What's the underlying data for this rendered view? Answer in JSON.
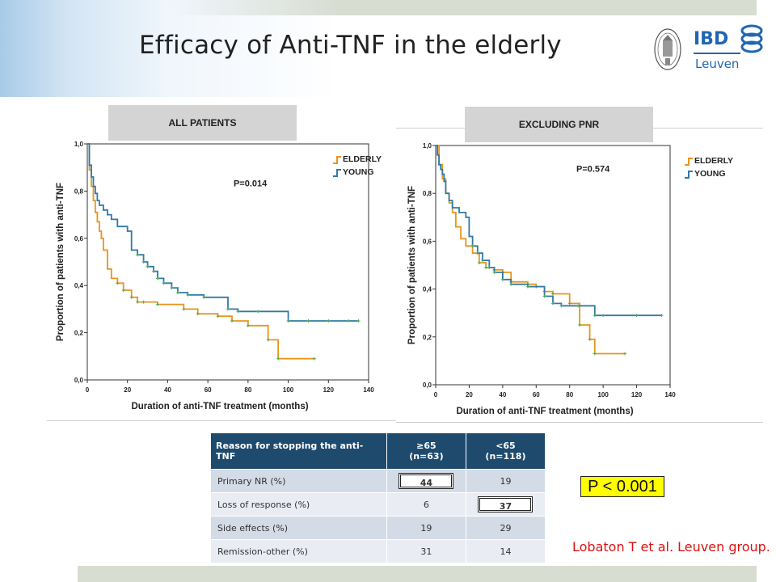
{
  "slide": {
    "title": "Efficacy of Anti-TNF in the elderly",
    "logo": {
      "ibd": "IBD",
      "city": "Leuven"
    },
    "p_value_box": "P < 0.001",
    "reference": "Lobaton T et al. Leuven group."
  },
  "colors": {
    "elderly": "#e8951e",
    "young": "#2f7aa6",
    "censor": "#4caf50",
    "table_header": "#1e4a6e"
  },
  "chart_data": [
    {
      "type": "line",
      "panel_label": "ALL PATIENTS",
      "annotation": "P=0.014",
      "xlabel": "Duration of anti-TNF treatment (months)",
      "ylabel": "Proportion of patients with anti-TNF",
      "xlim": [
        0,
        140
      ],
      "ylim": [
        0,
        1
      ],
      "xticks": [
        "0",
        "20",
        "40",
        "60",
        "80",
        "100",
        "120",
        "140"
      ],
      "yticks": [
        "0,0",
        "0,2",
        "0,4",
        "0,6",
        "0,8",
        "1,0"
      ],
      "legend_position": "top-right",
      "series": [
        {
          "name": "ELDERLY",
          "x": [
            0,
            1,
            2,
            3,
            4,
            5,
            6,
            7,
            8,
            10,
            12,
            15,
            18,
            22,
            25,
            28,
            35,
            48,
            55,
            65,
            72,
            80,
            90,
            95,
            113
          ],
          "y": [
            1.0,
            0.89,
            0.82,
            0.76,
            0.71,
            0.67,
            0.63,
            0.6,
            0.55,
            0.47,
            0.43,
            0.41,
            0.38,
            0.35,
            0.33,
            0.33,
            0.32,
            0.3,
            0.28,
            0.27,
            0.25,
            0.23,
            0.17,
            0.09,
            0.09
          ]
        },
        {
          "name": "YOUNG",
          "x": [
            0,
            1,
            2,
            3,
            4,
            5,
            6,
            8,
            10,
            12,
            15,
            20,
            22,
            25,
            28,
            30,
            33,
            35,
            38,
            42,
            45,
            50,
            58,
            70,
            75,
            85,
            100,
            110,
            120,
            130,
            135
          ],
          "y": [
            1.0,
            0.91,
            0.86,
            0.82,
            0.79,
            0.76,
            0.74,
            0.72,
            0.7,
            0.68,
            0.65,
            0.63,
            0.55,
            0.53,
            0.5,
            0.48,
            0.46,
            0.43,
            0.41,
            0.39,
            0.37,
            0.36,
            0.35,
            0.3,
            0.29,
            0.29,
            0.25,
            0.25,
            0.25,
            0.25,
            0.25
          ]
        }
      ]
    },
    {
      "type": "line",
      "panel_label": "EXCLUDING PNR",
      "annotation": "P=0.574",
      "xlabel": "Duration of anti-TNF treatment (months)",
      "ylabel": "Proportion of patients with anti-TNF",
      "xlim": [
        0,
        140
      ],
      "ylim": [
        0,
        1
      ],
      "xticks": [
        "0",
        "20",
        "40",
        "60",
        "80",
        "100",
        "120",
        "140"
      ],
      "yticks": [
        "0,0",
        "0,2",
        "0,4",
        "0,6",
        "0,8",
        "1,0"
      ],
      "legend_position": "top-right",
      "series": [
        {
          "name": "ELDERLY",
          "x": [
            0,
            2,
            4,
            6,
            8,
            10,
            12,
            15,
            18,
            22,
            26,
            30,
            35,
            40,
            45,
            55,
            60,
            65,
            70,
            80,
            86,
            92,
            95,
            113
          ],
          "y": [
            1.0,
            0.92,
            0.86,
            0.8,
            0.76,
            0.72,
            0.66,
            0.61,
            0.58,
            0.55,
            0.51,
            0.49,
            0.48,
            0.47,
            0.43,
            0.42,
            0.41,
            0.39,
            0.38,
            0.34,
            0.25,
            0.19,
            0.13,
            0.13
          ]
        },
        {
          "name": "YOUNG",
          "x": [
            0,
            1,
            2,
            3,
            4,
            5,
            6,
            8,
            10,
            14,
            18,
            20,
            22,
            25,
            28,
            32,
            35,
            40,
            45,
            55,
            65,
            70,
            75,
            85,
            95,
            100,
            120,
            135
          ],
          "y": [
            1.0,
            0.96,
            0.92,
            0.9,
            0.88,
            0.85,
            0.8,
            0.77,
            0.74,
            0.72,
            0.7,
            0.62,
            0.58,
            0.55,
            0.52,
            0.49,
            0.47,
            0.44,
            0.42,
            0.41,
            0.37,
            0.34,
            0.33,
            0.33,
            0.29,
            0.29,
            0.29,
            0.29
          ]
        }
      ]
    }
  ],
  "table": {
    "headers": [
      "Reason for stopping the anti-TNF",
      "≥65\n(n=63)",
      "<65\n(n=118)"
    ],
    "header_lines": [
      [
        "Reason for stopping the anti-TNF"
      ],
      [
        "≥65",
        "(n=63)"
      ],
      [
        "<65",
        "(n=118)"
      ]
    ],
    "rows": [
      {
        "reason": "Primary NR (%)",
        "elderly": "44",
        "young": "19"
      },
      {
        "reason": "Loss of response  (%)",
        "elderly": "6",
        "young": "37"
      },
      {
        "reason": "Side effects  (%)",
        "elderly": "19",
        "young": "29"
      },
      {
        "reason": "Remission-other  (%)",
        "elderly": "31",
        "young": "14"
      }
    ]
  }
}
